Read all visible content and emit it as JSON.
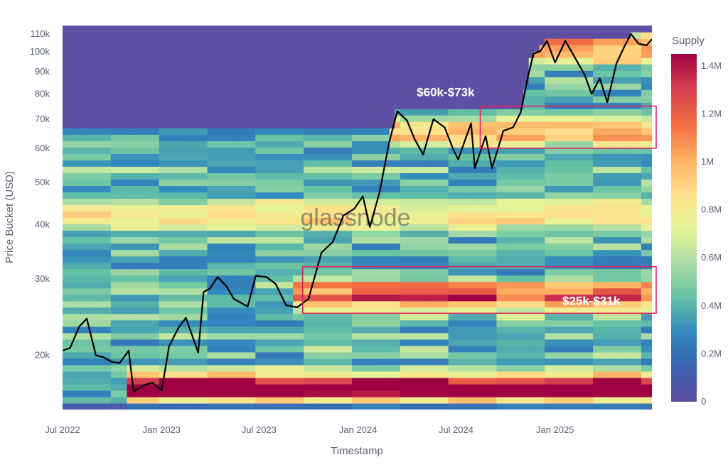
{
  "chart_data": {
    "type": "heatmap",
    "title": "",
    "xlabel": "Timestamp",
    "ylabel": "Price Bucket (USD)",
    "yscale": "log",
    "xlim": [
      "2022-07-01",
      "2025-06-30"
    ],
    "ylim": [
      15000,
      115000
    ],
    "x_ticks": [
      "Jul 2022",
      "Jan 2023",
      "Jul 2023",
      "Jan 2024",
      "Jul 2024",
      "Jan 2025"
    ],
    "x_tick_dates": [
      "2022-07-01",
      "2023-01-01",
      "2023-07-01",
      "2024-01-01",
      "2024-07-01",
      "2025-01-01"
    ],
    "y_ticks": [
      "20k",
      "30k",
      "40k",
      "50k",
      "60k",
      "70k",
      "80k",
      "90k",
      "100k",
      "110k"
    ],
    "y_tick_values": [
      20000,
      30000,
      40000,
      50000,
      60000,
      70000,
      80000,
      90000,
      100000,
      110000
    ],
    "colorbar": {
      "title": "Supply",
      "tick_labels": [
        "0",
        "0.2M",
        "0.4M",
        "0.6M",
        "0.8M",
        "1M",
        "1.2M",
        "1.4M"
      ],
      "tick_values": [
        0,
        200000,
        400000,
        600000,
        800000,
        1000000,
        1200000,
        1400000
      ],
      "range": [
        0,
        1450000
      ]
    },
    "price_series": {
      "color": "#000000",
      "points": [
        [
          "2022-07-01",
          20500
        ],
        [
          "2022-07-15",
          20800
        ],
        [
          "2022-08-01",
          23300
        ],
        [
          "2022-08-15",
          24300
        ],
        [
          "2022-09-01",
          20000
        ],
        [
          "2022-09-15",
          19800
        ],
        [
          "2022-10-01",
          19300
        ],
        [
          "2022-10-15",
          19200
        ],
        [
          "2022-11-01",
          20500
        ],
        [
          "2022-11-10",
          16500
        ],
        [
          "2022-12-01",
          17100
        ],
        [
          "2022-12-15",
          17300
        ],
        [
          "2023-01-01",
          16600
        ],
        [
          "2023-01-15",
          21000
        ],
        [
          "2023-02-01",
          23100
        ],
        [
          "2023-02-15",
          24400
        ],
        [
          "2023-03-10",
          20300
        ],
        [
          "2023-03-20",
          28000
        ],
        [
          "2023-04-01",
          28500
        ],
        [
          "2023-04-15",
          30300
        ],
        [
          "2023-05-01",
          28900
        ],
        [
          "2023-05-15",
          27000
        ],
        [
          "2023-06-10",
          25900
        ],
        [
          "2023-06-25",
          30500
        ],
        [
          "2023-07-15",
          30300
        ],
        [
          "2023-08-01",
          29200
        ],
        [
          "2023-08-20",
          26100
        ],
        [
          "2023-09-10",
          25800
        ],
        [
          "2023-10-01",
          27000
        ],
        [
          "2023-10-25",
          34500
        ],
        [
          "2023-11-15",
          36500
        ],
        [
          "2023-12-05",
          42000
        ],
        [
          "2023-12-25",
          43500
        ],
        [
          "2024-01-10",
          46500
        ],
        [
          "2024-01-23",
          39500
        ],
        [
          "2024-02-10",
          47500
        ],
        [
          "2024-02-28",
          62000
        ],
        [
          "2024-03-14",
          73000
        ],
        [
          "2024-04-01",
          69500
        ],
        [
          "2024-04-15",
          63000
        ],
        [
          "2024-05-01",
          58000
        ],
        [
          "2024-05-20",
          70000
        ],
        [
          "2024-06-10",
          67000
        ],
        [
          "2024-06-25",
          60000
        ],
        [
          "2024-07-05",
          56500
        ],
        [
          "2024-07-29",
          68500
        ],
        [
          "2024-08-05",
          54000
        ],
        [
          "2024-08-25",
          64000
        ],
        [
          "2024-09-06",
          54000
        ],
        [
          "2024-09-27",
          65800
        ],
        [
          "2024-10-15",
          67000
        ],
        [
          "2024-10-29",
          72500
        ],
        [
          "2024-11-12",
          88000
        ],
        [
          "2024-11-22",
          99000
        ],
        [
          "2024-12-05",
          100500
        ],
        [
          "2024-12-17",
          106000
        ],
        [
          "2025-01-01",
          94500
        ],
        [
          "2025-01-20",
          106000
        ],
        [
          "2025-02-01",
          100000
        ],
        [
          "2025-02-25",
          88500
        ],
        [
          "2025-03-10",
          80000
        ],
        [
          "2025-03-25",
          87000
        ],
        [
          "2025-04-08",
          76500
        ],
        [
          "2025-04-25",
          94000
        ],
        [
          "2025-05-10",
          103000
        ],
        [
          "2025-05-22",
          110000
        ],
        [
          "2025-06-05",
          104500
        ],
        [
          "2025-06-20",
          103500
        ],
        [
          "2025-06-30",
          107000
        ]
      ]
    },
    "annotations": [
      {
        "text": "$60k-$73k",
        "range_x": [
          "2024-08-15",
          "2025-06-30"
        ],
        "range_y": [
          60000,
          75000
        ]
      },
      {
        "text": "$25k-$31k",
        "range_x": [
          "2023-09-20",
          "2025-06-30"
        ],
        "range_y": [
          25000,
          32000
        ]
      }
    ],
    "watermark": "glassnode"
  }
}
